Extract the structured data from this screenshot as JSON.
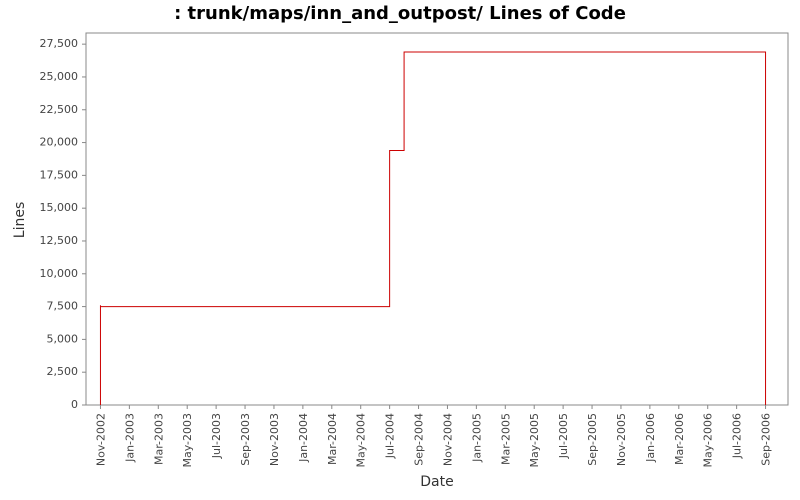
{
  "chart_data": {
    "type": "step",
    "title": ": trunk/maps/inn_and_outpost/ Lines of Code",
    "x_label": "Date",
    "y_label": "Lines",
    "x": [
      "Nov-2002",
      "Nov-2002",
      "Nov-2002",
      "Nov-2002",
      "Jul-2004",
      "Jul-2004",
      "Aug-2004",
      "Sep-2006"
    ],
    "series": [
      {
        "name": "Lines",
        "color": "#cc0000",
        "values": [
          0,
          3800,
          7600,
          7500,
          18900,
          19400,
          26900,
          0
        ]
      }
    ],
    "xlim": [
      "Oct-2002",
      "Oct-2006"
    ],
    "xticks": [
      "Nov-2002",
      "Jan-2003",
      "Mar-2003",
      "May-2003",
      "Jul-2003",
      "Sep-2003",
      "Nov-2003",
      "Jan-2004",
      "Mar-2004",
      "May-2004",
      "Jul-2004",
      "Sep-2004",
      "Nov-2004",
      "Jan-2005",
      "Mar-2005",
      "May-2005",
      "Jul-2005",
      "Sep-2005",
      "Nov-2005",
      "Jan-2006",
      "Mar-2006",
      "May-2006",
      "Jul-2006",
      "Sep-2006"
    ],
    "ylim": [
      0,
      28350
    ],
    "yticks": [
      0,
      {
        "value": 2500,
        "label": "2,500"
      },
      {
        "value": 5000,
        "label": "5,000"
      },
      {
        "value": 7500,
        "label": "7,500"
      },
      {
        "value": 10000,
        "label": "10,000"
      },
      {
        "value": 12500,
        "label": "12,500"
      },
      {
        "value": 15000,
        "label": "15,000"
      },
      {
        "value": 17500,
        "label": "17,500"
      },
      {
        "value": 20000,
        "label": "20,000"
      },
      {
        "value": 22500,
        "label": "22,500"
      },
      {
        "value": 25000,
        "label": "25,000"
      },
      {
        "value": 27500,
        "label": "27,500"
      }
    ],
    "grid": false
  }
}
